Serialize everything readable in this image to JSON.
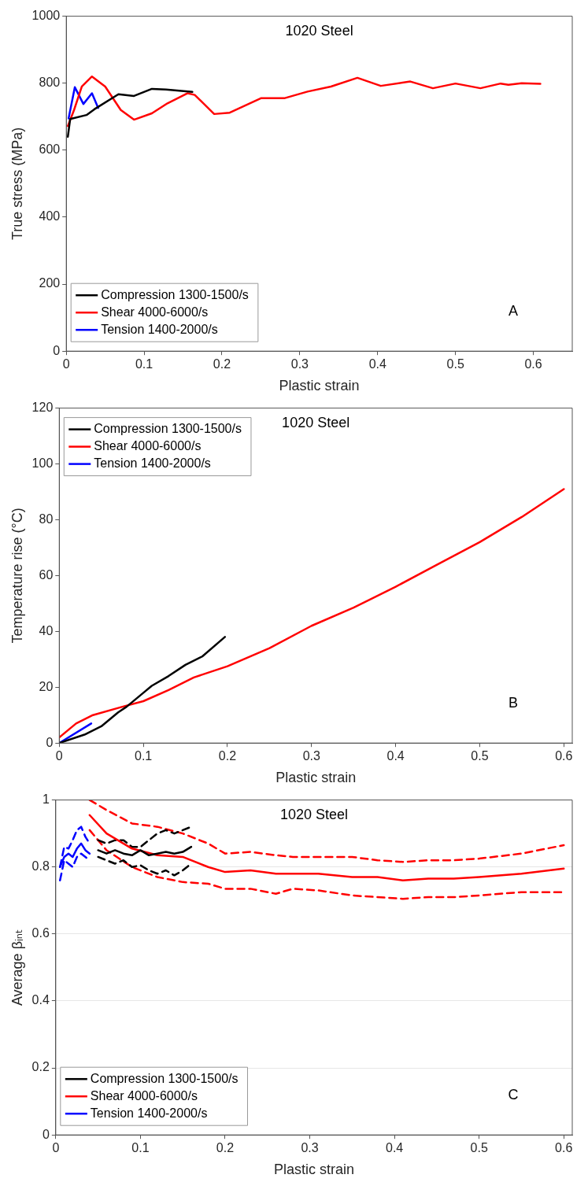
{
  "chart_data": [
    {
      "type": "line",
      "title": "1020 Steel",
      "xlabel": "Plastic strain",
      "ylabel": "True stress (MPa)",
      "xlim": [
        0,
        0.65
      ],
      "xticks": [
        0,
        0.1,
        0.2,
        0.3,
        0.4,
        0.5,
        0.6
      ],
      "ylim": [
        0,
        1000
      ],
      "yticks": [
        0,
        200,
        400,
        600,
        800,
        1000
      ],
      "legend": "bottom left",
      "annotations": [
        "A"
      ],
      "series": [
        {
          "name": "Compression 1300-1500/s",
          "color": "#000000",
          "x": [
            0.002,
            0.005,
            0.026,
            0.036,
            0.067,
            0.087,
            0.11,
            0.128,
            0.162
          ],
          "values": [
            640,
            693,
            705,
            722,
            767,
            762,
            783,
            781,
            774
          ]
        },
        {
          "name": "Shear 4000-6000/s",
          "color": "#ff0000",
          "x": [
            0.002,
            0.01,
            0.02,
            0.033,
            0.05,
            0.07,
            0.087,
            0.11,
            0.13,
            0.156,
            0.165,
            0.19,
            0.21,
            0.25,
            0.28,
            0.31,
            0.34,
            0.374,
            0.404,
            0.442,
            0.471,
            0.5,
            0.532,
            0.558,
            0.568,
            0.585,
            0.609
          ],
          "values": [
            672,
            720,
            790,
            820,
            790,
            720,
            691,
            710,
            740,
            770,
            765,
            708,
            712,
            755,
            755,
            775,
            790,
            816,
            792,
            805,
            785,
            799,
            785,
            799,
            795,
            800,
            798
          ]
        },
        {
          "name": "Tension 1400-2000/s",
          "color": "#0000ff",
          "x": [
            0.003,
            0.011,
            0.022,
            0.033,
            0.041
          ],
          "values": [
            695,
            788,
            738,
            770,
            726
          ]
        }
      ]
    },
    {
      "type": "line",
      "title": "1020 Steel",
      "xlabel": "Plastic strain",
      "ylabel": "Temperature rise (°C)",
      "xlim": [
        0,
        0.61
      ],
      "xticks": [
        0,
        0.1,
        0.2,
        0.3,
        0.4,
        0.5,
        0.6
      ],
      "ylim": [
        0,
        120
      ],
      "yticks": [
        0,
        20,
        40,
        60,
        80,
        100,
        120
      ],
      "legend": "top left",
      "annotations": [
        "B"
      ],
      "series": [
        {
          "name": "Compression 1300-1500/s",
          "color": "#000000",
          "x": [
            0,
            0.03,
            0.05,
            0.07,
            0.08,
            0.1,
            0.11,
            0.13,
            0.15,
            0.17,
            0.197
          ],
          "values": [
            0,
            3,
            6,
            11,
            13,
            18,
            20.5,
            24,
            28,
            31,
            38
          ]
        },
        {
          "name": "Shear 4000-6000/s",
          "color": "#ff0000",
          "x": [
            0,
            0.02,
            0.04,
            0.075,
            0.1,
            0.13,
            0.16,
            0.2,
            0.25,
            0.3,
            0.35,
            0.4,
            0.45,
            0.5,
            0.55,
            0.6
          ],
          "values": [
            2,
            7,
            10,
            13,
            15,
            19,
            23.5,
            27.5,
            34,
            42,
            48.5,
            56,
            64,
            72,
            81,
            91
          ]
        },
        {
          "name": "Tension 1400-2000/s",
          "color": "#0000ff",
          "x": [
            0,
            0.038
          ],
          "values": [
            0,
            7
          ]
        }
      ]
    },
    {
      "type": "line",
      "title": "1020 Steel",
      "xlabel": "Plastic strain",
      "ylabel": "Average βᵢₙₜ",
      "xlim": [
        0,
        0.61
      ],
      "xticks": [
        0,
        0.1,
        0.2,
        0.3,
        0.4,
        0.5,
        0.6
      ],
      "ylim": [
        0,
        1
      ],
      "yticks": [
        0,
        0.2,
        0.4,
        0.6,
        0.8,
        1
      ],
      "grid": "y",
      "legend": "bottom left",
      "annotations": [
        "C"
      ],
      "series": [
        {
          "name": "Compression 1300-1500/s",
          "color": "#000000",
          "x": [
            0.05,
            0.06,
            0.07,
            0.08,
            0.09,
            0.1,
            0.11,
            0.12,
            0.13,
            0.14,
            0.15,
            0.16
          ],
          "values": [
            0.85,
            0.84,
            0.85,
            0.84,
            0.835,
            0.85,
            0.835,
            0.84,
            0.845,
            0.84,
            0.845,
            0.86
          ]
        },
        {
          "name": "Shear 4000-6000/s",
          "color": "#ff0000",
          "x": [
            0.04,
            0.06,
            0.09,
            0.12,
            0.15,
            0.18,
            0.2,
            0.23,
            0.26,
            0.28,
            0.31,
            0.35,
            0.38,
            0.41,
            0.44,
            0.47,
            0.5,
            0.55,
            0.6
          ],
          "values": [
            0.955,
            0.9,
            0.855,
            0.835,
            0.83,
            0.8,
            0.785,
            0.79,
            0.78,
            0.78,
            0.78,
            0.77,
            0.77,
            0.76,
            0.765,
            0.765,
            0.77,
            0.78,
            0.795
          ]
        },
        {
          "name": "Tension 1400-2000/s",
          "color": "#0000ff",
          "x": [
            0.005,
            0.01,
            0.015,
            0.02,
            0.025,
            0.03,
            0.035,
            0.04
          ],
          "values": [
            0.8,
            0.83,
            0.84,
            0.83,
            0.855,
            0.87,
            0.85,
            0.84
          ]
        },
        {
          "color": "#000000",
          "line_style": "dashed",
          "x": [
            0.05,
            0.06,
            0.07,
            0.08,
            0.09,
            0.1,
            0.11,
            0.12,
            0.13,
            0.14,
            0.15,
            0.16
          ],
          "values": [
            0.88,
            0.87,
            0.88,
            0.88,
            0.86,
            0.86,
            0.88,
            0.9,
            0.91,
            0.9,
            0.91,
            0.92
          ]
        },
        {
          "color": "#000000",
          "line_style": "dashed",
          "x": [
            0.05,
            0.06,
            0.07,
            0.08,
            0.09,
            0.1,
            0.11,
            0.12,
            0.13,
            0.14,
            0.15,
            0.16
          ],
          "values": [
            0.83,
            0.82,
            0.81,
            0.82,
            0.8,
            0.805,
            0.79,
            0.78,
            0.79,
            0.775,
            0.79,
            0.81
          ]
        },
        {
          "color": "#ff0000",
          "line_style": "dashed",
          "x": [
            0.04,
            0.06,
            0.09,
            0.12,
            0.15,
            0.18,
            0.2,
            0.23,
            0.26,
            0.28,
            0.31,
            0.35,
            0.38,
            0.41,
            0.44,
            0.47,
            0.5,
            0.55,
            0.6
          ],
          "values": [
            1.0,
            0.97,
            0.93,
            0.92,
            0.9,
            0.87,
            0.84,
            0.845,
            0.835,
            0.83,
            0.83,
            0.83,
            0.82,
            0.815,
            0.82,
            0.82,
            0.825,
            0.84,
            0.865
          ]
        },
        {
          "color": "#ff0000",
          "line_style": "dashed",
          "x": [
            0.04,
            0.06,
            0.09,
            0.12,
            0.15,
            0.18,
            0.2,
            0.23,
            0.26,
            0.28,
            0.31,
            0.35,
            0.38,
            0.41,
            0.44,
            0.47,
            0.5,
            0.55,
            0.6
          ],
          "values": [
            0.91,
            0.85,
            0.8,
            0.77,
            0.755,
            0.75,
            0.735,
            0.735,
            0.72,
            0.735,
            0.73,
            0.715,
            0.71,
            0.705,
            0.71,
            0.71,
            0.715,
            0.725,
            0.725
          ]
        },
        {
          "color": "#0000ff",
          "line_style": "dashed",
          "x": [
            0.005,
            0.01,
            0.015,
            0.02,
            0.025,
            0.03,
            0.035,
            0.04
          ],
          "values": [
            0.8,
            0.86,
            0.855,
            0.88,
            0.91,
            0.92,
            0.89,
            0.87
          ]
        },
        {
          "color": "#0000ff",
          "line_style": "dashed",
          "x": [
            0.005,
            0.01,
            0.015,
            0.02,
            0.025,
            0.03,
            0.035,
            0.04
          ],
          "values": [
            0.76,
            0.82,
            0.81,
            0.8,
            0.83,
            0.84,
            0.83,
            0.82
          ]
        }
      ]
    }
  ]
}
